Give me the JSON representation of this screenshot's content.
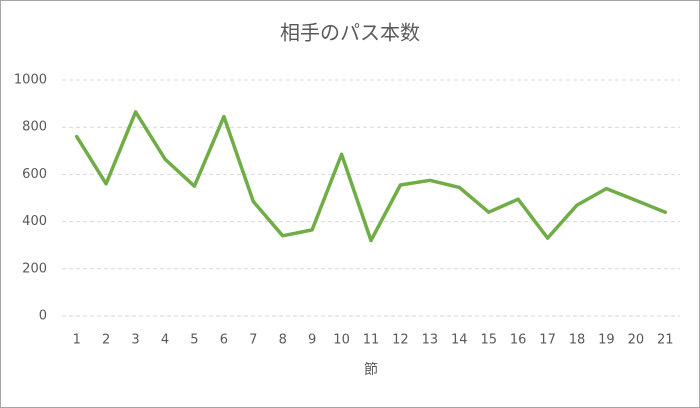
{
  "chart_data": {
    "type": "line",
    "title": "相手のパス本数",
    "x_label": "節",
    "categories": [
      "1",
      "2",
      "3",
      "4",
      "5",
      "6",
      "7",
      "8",
      "9",
      "10",
      "11",
      "12",
      "13",
      "14",
      "15",
      "16",
      "17",
      "18",
      "19",
      "20",
      "21"
    ],
    "series": [
      {
        "name": "相手のパス本数",
        "color": "#70ad47",
        "values": [
          760,
          560,
          865,
          665,
          550,
          845,
          485,
          340,
          365,
          685,
          320,
          555,
          575,
          545,
          440,
          495,
          330,
          470,
          540,
          490,
          440
        ]
      }
    ],
    "ylim": [
      0,
      1000
    ],
    "yticks": [
      0,
      200,
      400,
      600,
      800,
      1000
    ],
    "grid": true
  }
}
